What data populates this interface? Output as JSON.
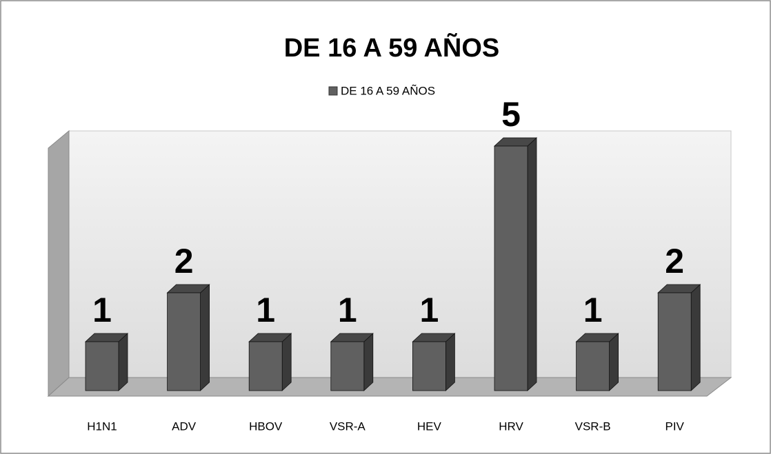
{
  "chart_data": {
    "type": "bar3d",
    "title": "DE 16 A 59 AÑOS",
    "categories": [
      "H1N1",
      "ADV",
      "HBOV",
      "VSR-A",
      "HEV",
      "HRV",
      "VSR-B",
      "PIV"
    ],
    "series": [
      {
        "name": "DE 16 A 59 AÑOS",
        "color": "#606060",
        "values": [
          1,
          2,
          1,
          1,
          1,
          5,
          1,
          2
        ]
      }
    ],
    "legend": "top"
  }
}
